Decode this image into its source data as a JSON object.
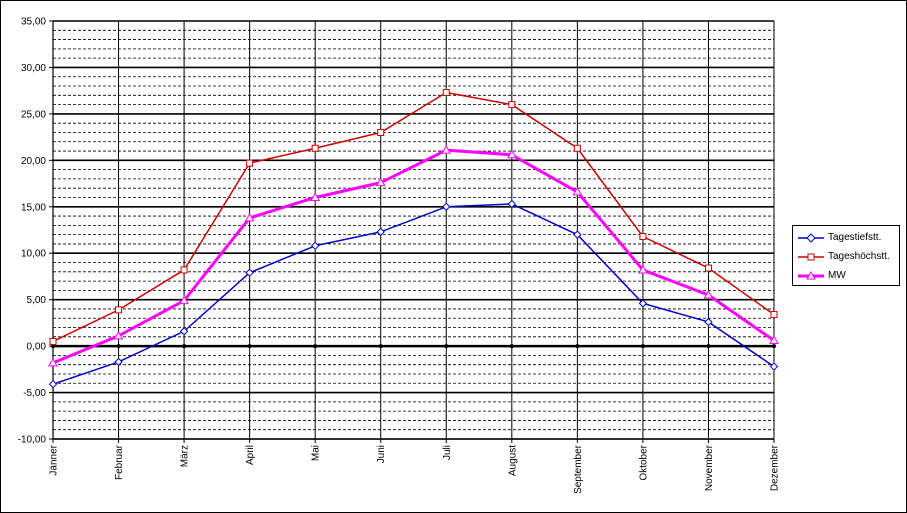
{
  "chart_data": {
    "type": "line",
    "title": "",
    "xlabel": "",
    "ylabel": "",
    "categories": [
      "Jänner",
      "Februar",
      "März",
      "April",
      "Mai",
      "Juni",
      "Juli",
      "August",
      "September",
      "Oktober",
      "November",
      "Dezember"
    ],
    "ylim": [
      -10,
      35
    ],
    "y_ticks": [
      "35,00",
      "30,00",
      "25,00",
      "20,00",
      "15,00",
      "10,00",
      "5,00",
      "0,00",
      "-5,00",
      "-10,00"
    ],
    "y_tick_values": [
      35,
      30,
      25,
      20,
      15,
      10,
      5,
      0,
      -5,
      -10
    ],
    "major_grid": 5,
    "minor_grid": 1,
    "legend_position": "right",
    "series": [
      {
        "name": "Tagestiefstt.",
        "color": "#0000CC",
        "marker": "diamond",
        "values": [
          -4.1,
          -1.7,
          1.6,
          7.9,
          10.8,
          12.3,
          15.0,
          15.3,
          12.0,
          4.6,
          2.6,
          -2.2
        ]
      },
      {
        "name": "Tageshöchstt.",
        "color": "#CC0000",
        "marker": "square",
        "values": [
          0.5,
          3.9,
          8.2,
          19.7,
          21.3,
          23.0,
          27.3,
          26.0,
          21.3,
          11.8,
          8.4,
          3.4
        ]
      },
      {
        "name": "MW",
        "color": "#FF00FF",
        "marker": "triangle",
        "values": [
          -1.8,
          1.1,
          4.9,
          13.8,
          16.0,
          17.6,
          21.1,
          20.6,
          16.6,
          8.2,
          5.5,
          0.6
        ]
      }
    ]
  }
}
